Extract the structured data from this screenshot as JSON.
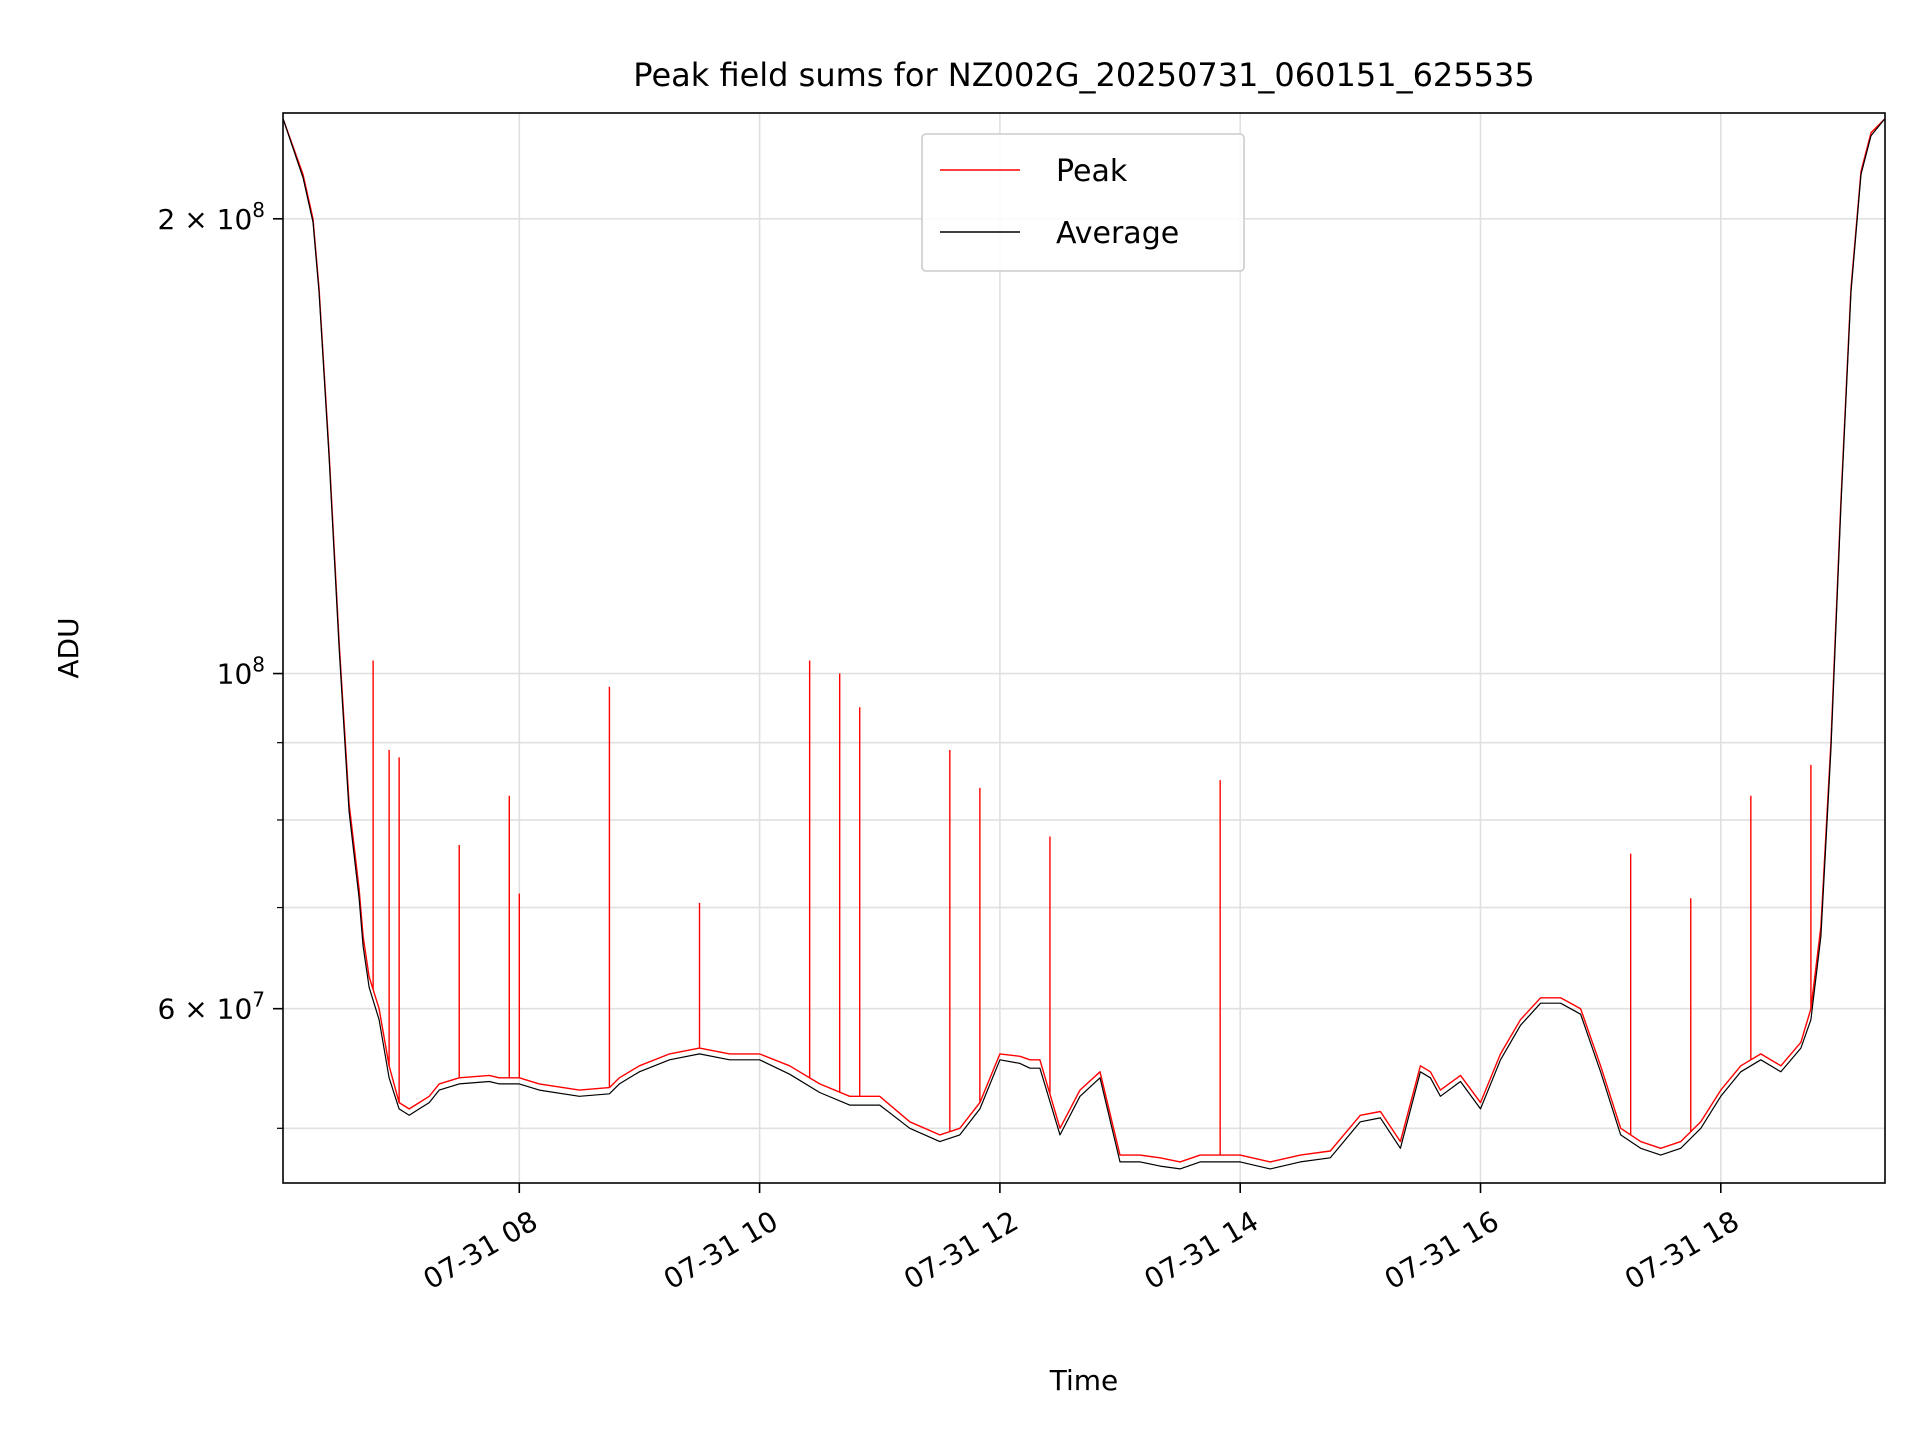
{
  "chart_data": {
    "type": "line",
    "title": "Peak field sums for NZ002G_20250731_060151_625535",
    "xlabel": "Time",
    "ylabel": "ADU",
    "yscale": "log",
    "grid": true,
    "legend_position": "upper center",
    "xlim": [
      "2025-07-31 06:02",
      "2025-07-31 19:22"
    ],
    "ylim": [
      46000000,
      235000000
    ],
    "x_ticks": [
      {
        "value": "2025-07-31 08:00",
        "label": "07-31 08"
      },
      {
        "value": "2025-07-31 10:00",
        "label": "07-31 10"
      },
      {
        "value": "2025-07-31 12:00",
        "label": "07-31 12"
      },
      {
        "value": "2025-07-31 14:00",
        "label": "07-31 14"
      },
      {
        "value": "2025-07-31 16:00",
        "label": "07-31 16"
      },
      {
        "value": "2025-07-31 18:00",
        "label": "07-31 18"
      }
    ],
    "y_major_ticks": [
      {
        "value": 60000000,
        "mant": "6",
        "exp": "7"
      },
      {
        "value": 100000000,
        "mant": "",
        "exp": "8"
      },
      {
        "value": 200000000,
        "mant": "2",
        "exp": "8"
      }
    ],
    "y_minor_ticks": [
      50000000,
      70000000,
      80000000,
      90000000
    ],
    "series": [
      {
        "name": "Peak",
        "color": "#ff0000",
        "x": [
          "2025-07-31 06:02",
          "2025-07-31 06:12",
          "2025-07-31 06:17",
          "2025-07-31 06:20",
          "2025-07-31 06:25",
          "2025-07-31 06:30",
          "2025-07-31 06:35",
          "2025-07-31 06:40",
          "2025-07-31 06:42",
          "2025-07-31 06:45",
          "2025-07-31 06:50",
          "2025-07-31 06:55",
          "2025-07-31 07:00",
          "2025-07-31 07:05",
          "2025-07-31 07:10",
          "2025-07-31 07:15",
          "2025-07-31 07:20",
          "2025-07-31 07:30",
          "2025-07-31 07:45",
          "2025-07-31 07:50",
          "2025-07-31 08:00",
          "2025-07-31 08:10",
          "2025-07-31 08:30",
          "2025-07-31 08:45",
          "2025-07-31 08:50",
          "2025-07-31 09:00",
          "2025-07-31 09:15",
          "2025-07-31 09:30",
          "2025-07-31 09:45",
          "2025-07-31 10:00",
          "2025-07-31 10:15",
          "2025-07-31 10:30",
          "2025-07-31 10:45",
          "2025-07-31 11:00",
          "2025-07-31 11:15",
          "2025-07-31 11:30",
          "2025-07-31 11:40",
          "2025-07-31 11:50",
          "2025-07-31 12:00",
          "2025-07-31 12:10",
          "2025-07-31 12:15",
          "2025-07-31 12:20",
          "2025-07-31 12:30",
          "2025-07-31 12:40",
          "2025-07-31 12:50",
          "2025-07-31 13:00",
          "2025-07-31 13:10",
          "2025-07-31 13:20",
          "2025-07-31 13:30",
          "2025-07-31 13:40",
          "2025-07-31 14:00",
          "2025-07-31 14:15",
          "2025-07-31 14:30",
          "2025-07-31 14:45",
          "2025-07-31 15:00",
          "2025-07-31 15:10",
          "2025-07-31 15:20",
          "2025-07-31 15:30",
          "2025-07-31 15:35",
          "2025-07-31 15:40",
          "2025-07-31 15:50",
          "2025-07-31 16:00",
          "2025-07-31 16:10",
          "2025-07-31 16:20",
          "2025-07-31 16:30",
          "2025-07-31 16:40",
          "2025-07-31 16:50",
          "2025-07-31 17:00",
          "2025-07-31 17:10",
          "2025-07-31 17:20",
          "2025-07-31 17:30",
          "2025-07-31 17:40",
          "2025-07-31 17:50",
          "2025-07-31 18:00",
          "2025-07-31 18:10",
          "2025-07-31 18:20",
          "2025-07-31 18:30",
          "2025-07-31 18:40",
          "2025-07-31 18:45",
          "2025-07-31 18:50",
          "2025-07-31 18:55",
          "2025-07-31 19:00",
          "2025-07-31 19:05",
          "2025-07-31 19:10",
          "2025-07-31 19:15",
          "2025-07-31 19:22"
        ],
        "values": [
          233000000,
          214000000,
          200000000,
          180000000,
          140000000,
          105000000,
          82000000,
          72000000,
          67000000,
          63000000,
          60000000,
          55000000,
          52000000,
          51500000,
          52000000,
          52500000,
          53500000,
          54000000,
          54200000,
          54000000,
          54000000,
          53500000,
          53000000,
          53200000,
          54000000,
          55000000,
          56000000,
          56500000,
          56000000,
          56000000,
          55000000,
          53500000,
          52500000,
          52500000,
          50500000,
          49500000,
          50000000,
          52000000,
          56000000,
          55800000,
          55500000,
          55500000,
          50000000,
          53000000,
          54500000,
          48000000,
          48000000,
          47800000,
          47500000,
          48000000,
          48000000,
          47500000,
          48000000,
          48300000,
          51000000,
          51300000,
          49000000,
          55000000,
          54500000,
          53000000,
          54200000,
          52000000,
          56000000,
          59000000,
          61000000,
          61000000,
          60000000,
          55000000,
          50000000,
          49000000,
          48500000,
          49000000,
          50500000,
          53000000,
          55000000,
          56000000,
          55000000,
          57000000,
          60000000,
          68000000,
          90000000,
          130000000,
          180000000,
          215000000,
          228000000,
          233000000
        ],
        "spikes": [
          {
            "x": "2025-07-31 06:47",
            "value": 102000000
          },
          {
            "x": "2025-07-31 06:55",
            "value": 89000000
          },
          {
            "x": "2025-07-31 07:00",
            "value": 88000000
          },
          {
            "x": "2025-07-31 07:30",
            "value": 77000000
          },
          {
            "x": "2025-07-31 07:55",
            "value": 83000000
          },
          {
            "x": "2025-07-31 08:00",
            "value": 71500000
          },
          {
            "x": "2025-07-31 08:45",
            "value": 98000000
          },
          {
            "x": "2025-07-31 09:30",
            "value": 70500000
          },
          {
            "x": "2025-07-31 10:25",
            "value": 102000000
          },
          {
            "x": "2025-07-31 10:40",
            "value": 100000000
          },
          {
            "x": "2025-07-31 10:50",
            "value": 95000000
          },
          {
            "x": "2025-07-31 11:35",
            "value": 89000000
          },
          {
            "x": "2025-07-31 11:50",
            "value": 84000000
          },
          {
            "x": "2025-07-31 12:25",
            "value": 78000000
          },
          {
            "x": "2025-07-31 13:50",
            "value": 85000000
          },
          {
            "x": "2025-07-31 17:15",
            "value": 76000000
          },
          {
            "x": "2025-07-31 17:45",
            "value": 71000000
          },
          {
            "x": "2025-07-31 18:15",
            "value": 83000000
          },
          {
            "x": "2025-07-31 18:45",
            "value": 87000000
          }
        ]
      },
      {
        "name": "Average",
        "color": "#000000",
        "x": [
          "2025-07-31 06:02",
          "2025-07-31 06:12",
          "2025-07-31 06:17",
          "2025-07-31 06:20",
          "2025-07-31 06:25",
          "2025-07-31 06:30",
          "2025-07-31 06:35",
          "2025-07-31 06:40",
          "2025-07-31 06:42",
          "2025-07-31 06:45",
          "2025-07-31 06:50",
          "2025-07-31 06:55",
          "2025-07-31 07:00",
          "2025-07-31 07:05",
          "2025-07-31 07:10",
          "2025-07-31 07:15",
          "2025-07-31 07:20",
          "2025-07-31 07:30",
          "2025-07-31 07:45",
          "2025-07-31 07:50",
          "2025-07-31 08:00",
          "2025-07-31 08:10",
          "2025-07-31 08:30",
          "2025-07-31 08:45",
          "2025-07-31 08:50",
          "2025-07-31 09:00",
          "2025-07-31 09:15",
          "2025-07-31 09:30",
          "2025-07-31 09:45",
          "2025-07-31 10:00",
          "2025-07-31 10:15",
          "2025-07-31 10:30",
          "2025-07-31 10:45",
          "2025-07-31 11:00",
          "2025-07-31 11:15",
          "2025-07-31 11:30",
          "2025-07-31 11:40",
          "2025-07-31 11:50",
          "2025-07-31 12:00",
          "2025-07-31 12:10",
          "2025-07-31 12:15",
          "2025-07-31 12:20",
          "2025-07-31 12:30",
          "2025-07-31 12:40",
          "2025-07-31 12:50",
          "2025-07-31 13:00",
          "2025-07-31 13:10",
          "2025-07-31 13:20",
          "2025-07-31 13:30",
          "2025-07-31 13:40",
          "2025-07-31 14:00",
          "2025-07-31 14:15",
          "2025-07-31 14:30",
          "2025-07-31 14:45",
          "2025-07-31 15:00",
          "2025-07-31 15:10",
          "2025-07-31 15:20",
          "2025-07-31 15:30",
          "2025-07-31 15:35",
          "2025-07-31 15:40",
          "2025-07-31 15:50",
          "2025-07-31 16:00",
          "2025-07-31 16:10",
          "2025-07-31 16:20",
          "2025-07-31 16:30",
          "2025-07-31 16:40",
          "2025-07-31 16:50",
          "2025-07-31 17:00",
          "2025-07-31 17:10",
          "2025-07-31 17:20",
          "2025-07-31 17:30",
          "2025-07-31 17:40",
          "2025-07-31 17:50",
          "2025-07-31 18:00",
          "2025-07-31 18:10",
          "2025-07-31 18:20",
          "2025-07-31 18:30",
          "2025-07-31 18:40",
          "2025-07-31 18:45",
          "2025-07-31 18:50",
          "2025-07-31 18:55",
          "2025-07-31 19:00",
          "2025-07-31 19:05",
          "2025-07-31 19:10",
          "2025-07-31 19:15",
          "2025-07-31 19:22"
        ],
        "values": [
          233000000,
          213000000,
          199000000,
          179000000,
          139000000,
          104000000,
          81000000,
          71000000,
          66000000,
          62000000,
          59000000,
          54000000,
          51500000,
          51000000,
          51500000,
          52000000,
          53000000,
          53500000,
          53700000,
          53500000,
          53500000,
          53000000,
          52500000,
          52700000,
          53500000,
          54500000,
          55500000,
          56000000,
          55500000,
          55500000,
          54300000,
          52800000,
          51800000,
          51800000,
          50000000,
          49000000,
          49500000,
          51500000,
          55500000,
          55200000,
          54800000,
          54800000,
          49500000,
          52500000,
          54000000,
          47500000,
          47500000,
          47200000,
          47000000,
          47500000,
          47500000,
          47000000,
          47500000,
          47800000,
          50500000,
          50800000,
          48500000,
          54500000,
          54000000,
          52500000,
          53700000,
          51500000,
          55500000,
          58500000,
          60500000,
          60500000,
          59500000,
          54500000,
          49500000,
          48500000,
          48000000,
          48500000,
          50000000,
          52500000,
          54500000,
          55500000,
          54500000,
          56500000,
          59000000,
          67000000,
          89000000,
          129000000,
          179000000,
          214000000,
          227000000,
          233000000
        ]
      }
    ]
  }
}
